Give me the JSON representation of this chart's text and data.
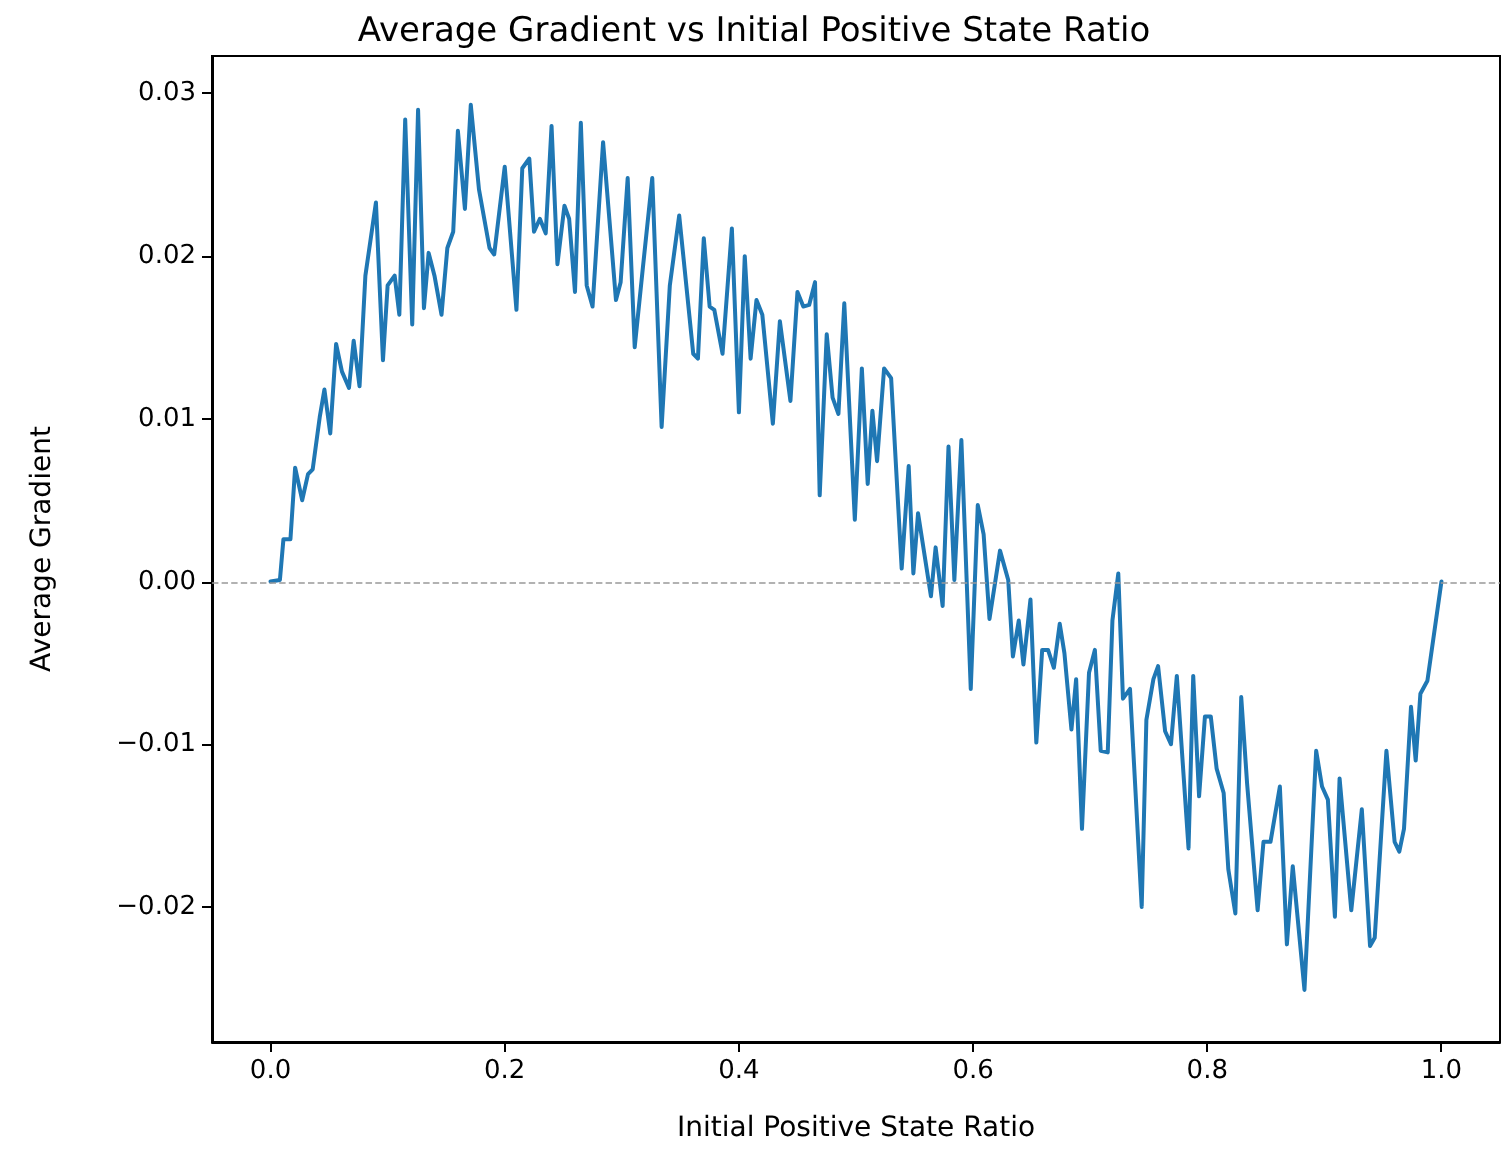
{
  "chart_data": {
    "type": "line",
    "title": "Average Gradient vs Initial Positive State Ratio",
    "xlabel": "Initial Positive State Ratio",
    "ylabel": "Average Gradient",
    "x": [
      0,
      0.008,
      0.011,
      0.017,
      0.021,
      0.027,
      0.032,
      0.036,
      0.042,
      0.046,
      0.051,
      0.056,
      0.061,
      0.067,
      0.071,
      0.076,
      0.081,
      0.09,
      0.096,
      0.1,
      0.106,
      0.11,
      0.115,
      0.121,
      0.126,
      0.131,
      0.135,
      0.14,
      0.146,
      0.151,
      0.156,
      0.16,
      0.166,
      0.171,
      0.178,
      0.187,
      0.191,
      0.2,
      0.21,
      0.215,
      0.221,
      0.225,
      0.23,
      0.235,
      0.24,
      0.245,
      0.251,
      0.255,
      0.26,
      0.265,
      0.27,
      0.275,
      0.284,
      0.295,
      0.299,
      0.305,
      0.311,
      0.318,
      0.326,
      0.334,
      0.341,
      0.349,
      0.361,
      0.365,
      0.37,
      0.375,
      0.379,
      0.386,
      0.394,
      0.4,
      0.405,
      0.41,
      0.415,
      0.42,
      0.429,
      0.435,
      0.444,
      0.45,
      0.455,
      0.46,
      0.465,
      0.469,
      0.475,
      0.48,
      0.485,
      0.49,
      0.499,
      0.505,
      0.51,
      0.514,
      0.518,
      0.524,
      0.53,
      0.539,
      0.545,
      0.549,
      0.553,
      0.564,
      0.568,
      0.574,
      0.579,
      0.584,
      0.59,
      0.598,
      0.604,
      0.609,
      0.614,
      0.623,
      0.63,
      0.634,
      0.639,
      0.643,
      0.649,
      0.654,
      0.659,
      0.664,
      0.669,
      0.674,
      0.678,
      0.684,
      0.688,
      0.693,
      0.699,
      0.704,
      0.709,
      0.715,
      0.719,
      0.724,
      0.728,
      0.734,
      0.744,
      0.748,
      0.754,
      0.758,
      0.764,
      0.769,
      0.774,
      0.784,
      0.788,
      0.793,
      0.798,
      0.803,
      0.808,
      0.814,
      0.818,
      0.824,
      0.829,
      0.834,
      0.843,
      0.848,
      0.854,
      0.862,
      0.868,
      0.873,
      0.883,
      0.893,
      0.898,
      0.903,
      0.909,
      0.913,
      0.923,
      0.932,
      0.939,
      0.943,
      0.953,
      0.96,
      0.964,
      0.968,
      0.974,
      0.978,
      0.982,
      0.988,
      1.0
    ],
    "series": [
      {
        "color": "#1f77b4",
        "values": [
          0,
          0.0001,
          0.0026,
          0.0026,
          0.007,
          0.005,
          0.0066,
          0.0069,
          0.0101,
          0.0118,
          0.0091,
          0.0146,
          0.0129,
          0.0119,
          0.0148,
          0.012,
          0.0188,
          0.0233,
          0.0136,
          0.0182,
          0.0188,
          0.0164,
          0.0284,
          0.0158,
          0.029,
          0.0168,
          0.0202,
          0.0188,
          0.0164,
          0.0205,
          0.0215,
          0.0277,
          0.0229,
          0.0293,
          0.0241,
          0.0205,
          0.0201,
          0.0255,
          0.0167,
          0.0254,
          0.026,
          0.0215,
          0.0223,
          0.0214,
          0.028,
          0.0195,
          0.0231,
          0.0223,
          0.0178,
          0.0282,
          0.0182,
          0.0169,
          0.027,
          0.0173,
          0.0184,
          0.0248,
          0.0144,
          0.0193,
          0.0248,
          0.0095,
          0.0182,
          0.0225,
          0.014,
          0.0137,
          0.0211,
          0.0169,
          0.0167,
          0.014,
          0.0217,
          0.0104,
          0.02,
          0.0137,
          0.0173,
          0.0164,
          0.0097,
          0.016,
          0.0111,
          0.0178,
          0.0169,
          0.017,
          0.0184,
          0.0053,
          0.0152,
          0.0113,
          0.0103,
          0.0171,
          0.0038,
          0.0131,
          0.006,
          0.0105,
          0.0074,
          0.0131,
          0.0125,
          0.0008,
          0.0071,
          0.0005,
          0.0042,
          -0.0009,
          0.0021,
          -0.0015,
          0.0083,
          0.0001,
          0.0087,
          -0.0066,
          0.0047,
          0.0029,
          -0.0023,
          0.0019,
          0.0001,
          -0.0046,
          -0.0024,
          -0.0051,
          -0.0011,
          -0.0099,
          -0.0042,
          -0.0042,
          -0.0053,
          -0.0026,
          -0.0044,
          -0.0091,
          -0.006,
          -0.0152,
          -0.0056,
          -0.0042,
          -0.0104,
          -0.0105,
          -0.0024,
          0.0005,
          -0.0072,
          -0.0066,
          -0.02,
          -0.0085,
          -0.006,
          -0.0052,
          -0.0092,
          -0.01,
          -0.0058,
          -0.0164,
          -0.0058,
          -0.0132,
          -0.0083,
          -0.0083,
          -0.0115,
          -0.013,
          -0.0177,
          -0.0204,
          -0.0071,
          -0.0124,
          -0.0202,
          -0.016,
          -0.016,
          -0.0126,
          -0.0223,
          -0.0175,
          -0.0251,
          -0.0104,
          -0.0126,
          -0.0134,
          -0.0206,
          -0.0121,
          -0.0202,
          -0.014,
          -0.0224,
          -0.0219,
          -0.0104,
          -0.016,
          -0.0166,
          -0.0152,
          -0.0077,
          -0.011,
          -0.0069,
          -0.0061,
          0
        ]
      }
    ],
    "xlim": [
      -0.05,
      1.05
    ],
    "ylim": [
      -0.0283,
      0.0323
    ],
    "xticks": [
      {
        "value": 0,
        "label": "0.0"
      },
      {
        "value": 0.2,
        "label": "0.2"
      },
      {
        "value": 0.4,
        "label": "0.4"
      },
      {
        "value": 0.6,
        "label": "0.6"
      },
      {
        "value": 0.8,
        "label": "0.8"
      },
      {
        "value": 1,
        "label": "1.0"
      }
    ],
    "yticks": [
      {
        "value": -0.02,
        "label": "−0.02"
      },
      {
        "value": -0.01,
        "label": "−0.01"
      },
      {
        "value": 0,
        "label": "0.00"
      },
      {
        "value": 0.01,
        "label": "0.01"
      },
      {
        "value": 0.02,
        "label": "0.02"
      },
      {
        "value": 0.03,
        "label": "0.03"
      }
    ],
    "ref_lines": [
      {
        "axis": "y",
        "value": 0,
        "color": "#999999",
        "line_style": "dashed"
      }
    ],
    "grid": false,
    "marker": "none",
    "line_style": "solid"
  }
}
